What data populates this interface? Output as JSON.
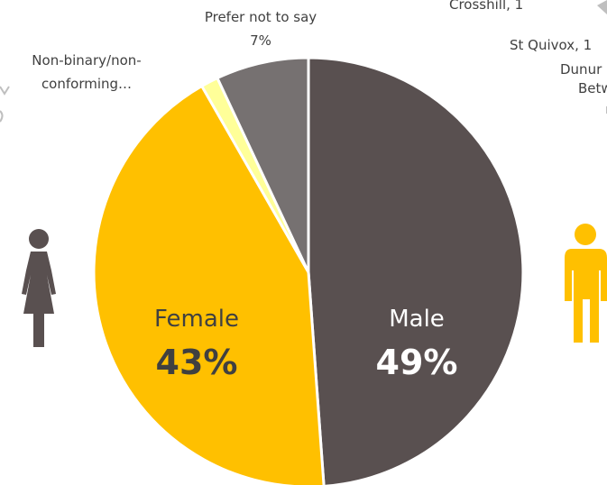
{
  "chart_data": {
    "type": "pie",
    "slices": [
      {
        "label": "Male",
        "value": 49,
        "display": "49%",
        "color": "#595050"
      },
      {
        "label": "Female",
        "value": 43,
        "display": "43%",
        "color": "#FFC000"
      },
      {
        "label": "Non-binary/non-conforming…",
        "label_line1": "Non-binary/non-",
        "label_line2": "conforming…",
        "value": 1.3,
        "color": "#FFFF99"
      },
      {
        "label": "Prefer not to say",
        "value": 7,
        "display": "7%",
        "color": "#767171"
      }
    ]
  },
  "fragments": {
    "crosshill": "Crosshill, 1",
    "st_quivox": "St Quivox, 1",
    "dunure": "Dunur",
    "betw": "Betw"
  },
  "colors": {
    "female_icon": "#595050",
    "male_icon": "#FFC000",
    "male_text": "#ffffff",
    "female_text": "#404040",
    "fragment_marks": "#BFBFBF"
  },
  "icons": {
    "left": "female-person-icon",
    "right": "male-person-icon"
  }
}
